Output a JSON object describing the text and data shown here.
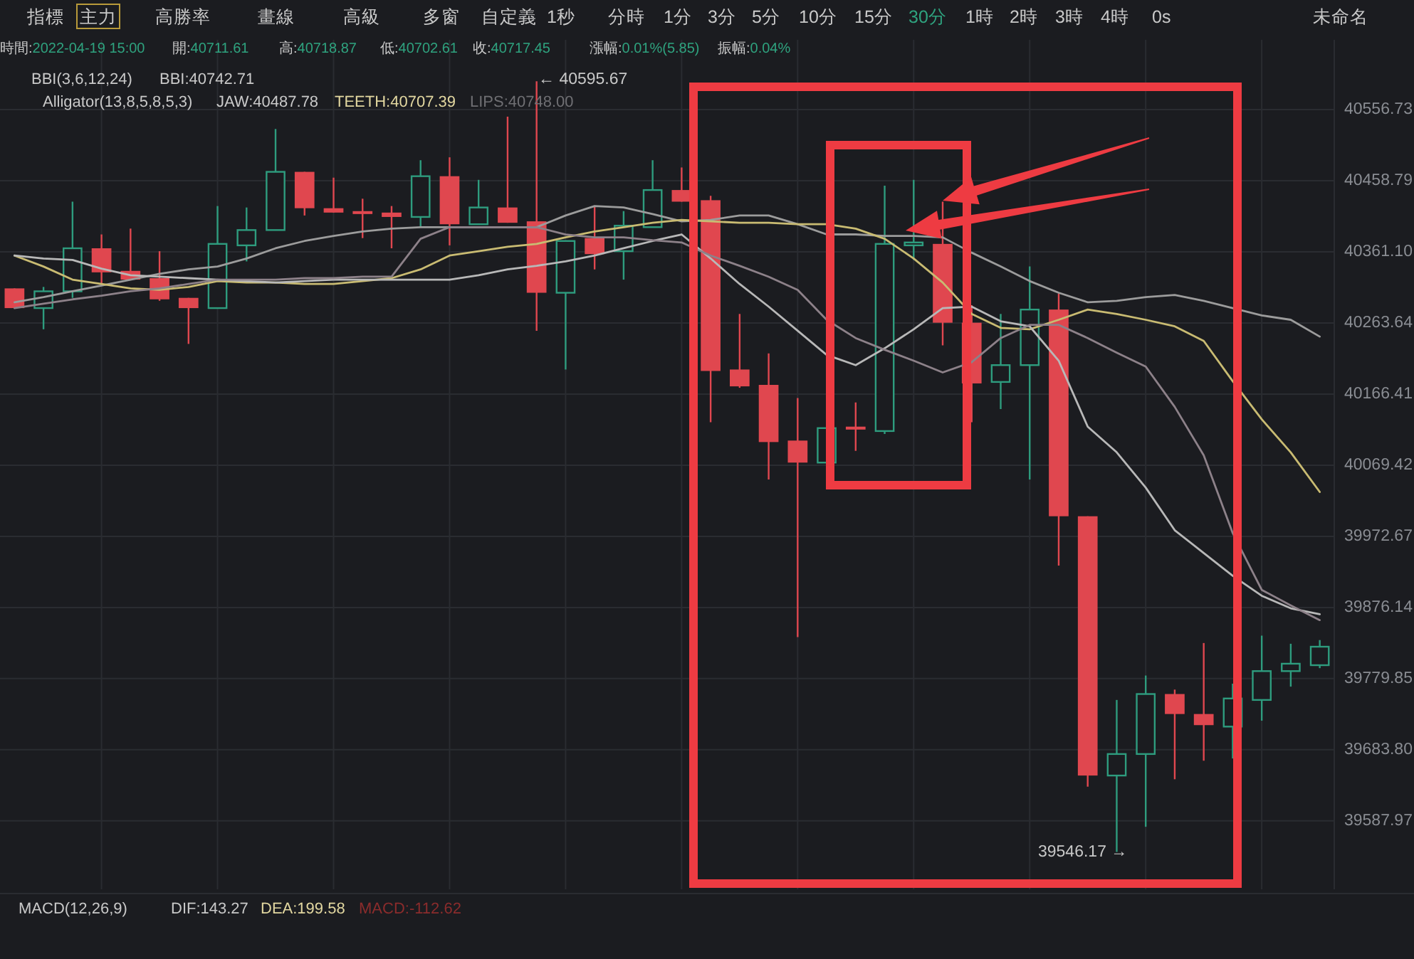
{
  "chart_data": {
    "type": "candlestick",
    "log": true,
    "grid": true,
    "tick_labels": "y",
    "categories": [
      null,
      null,
      null,
      null,
      null,
      null,
      null,
      null,
      null,
      null,
      null,
      null,
      null,
      null,
      null,
      null,
      null,
      null,
      null,
      null,
      null,
      null,
      null,
      null,
      null,
      null,
      null,
      null,
      null,
      null,
      null,
      null,
      null,
      null,
      null,
      null,
      null,
      null,
      null,
      null,
      null,
      null,
      null,
      null,
      null,
      null
    ],
    "ylim": [
      39496,
      40653
    ],
    "yticks": [
      40556.73,
      40458.79,
      {
        "value": 40361.1,
        "label": "40361.10"
      },
      40263.64,
      40166.41,
      40069.42,
      39972.67,
      39876.14,
      39779.85,
      {
        "value": 39683.8,
        "label": "39683.80"
      },
      39587.97
    ],
    "ohlc": [
      [
        40311,
        40311,
        40284,
        40284
      ],
      [
        40284,
        40313,
        40255,
        40307
      ],
      [
        40307,
        40430,
        40298,
        40366
      ],
      [
        40366,
        40385,
        40317,
        40333
      ],
      [
        40335,
        40393,
        40323,
        40323
      ],
      [
        40325,
        40362,
        40294,
        40296
      ],
      [
        40298,
        40298,
        40235,
        40284
      ],
      [
        40284,
        40424,
        40284,
        40372
      ],
      [
        40370,
        40422,
        40348,
        40391
      ],
      [
        40391,
        40530,
        40391,
        40471
      ],
      [
        40471,
        40471,
        40411,
        40421
      ],
      [
        40421,
        40463,
        40415,
        40415
      ],
      [
        40417,
        40434,
        40380,
        40413
      ],
      [
        40415,
        40424,
        40366,
        40409
      ],
      [
        40409,
        40487,
        40395,
        40465
      ],
      [
        40465,
        40491,
        40370,
        40399
      ],
      [
        40399,
        40460,
        40399,
        40422
      ],
      [
        40422,
        40547,
        40401,
        40401
      ],
      [
        40403,
        40595.67,
        40253,
        40305
      ],
      [
        40305,
        40376,
        40200,
        40376
      ],
      [
        40380,
        40424,
        40337,
        40358
      ],
      [
        40362,
        40417,
        40323,
        40397
      ],
      [
        40395,
        40487,
        40395,
        40446
      ],
      [
        40446,
        40477,
        40430,
        40430
      ],
      [
        40432,
        40438,
        40128,
        40198
      ],
      [
        40200,
        40276,
        40175,
        40177
      ],
      [
        40179,
        40222,
        40050,
        40101
      ],
      [
        40103,
        40161,
        39836,
        40073
      ],
      [
        40073,
        40120,
        40073,
        40120
      ],
      [
        40122,
        40155,
        40089,
        40118
      ],
      [
        40116,
        40452,
        40112,
        40372
      ],
      [
        40370,
        40460,
        40350,
        40374
      ],
      [
        40372,
        40430,
        40233,
        40264
      ],
      [
        40264,
        40288,
        40128,
        40181
      ],
      [
        40183,
        40276,
        40146,
        40206
      ],
      [
        40206,
        40341,
        40050,
        40282
      ],
      [
        40282,
        40304,
        39933,
        40000
      ],
      [
        40000,
        40000,
        39634,
        39649
      ],
      [
        39649,
        39751,
        39546.17,
        39678
      ],
      [
        39678,
        39784,
        39580,
        39759
      ],
      [
        39759,
        39765,
        39644,
        39732
      ],
      [
        39732,
        39828,
        39669,
        39717
      ],
      [
        39715,
        39773,
        39672,
        39753
      ],
      [
        39751,
        39838,
        39723,
        39790
      ],
      [
        39790,
        39827,
        39769,
        39800
      ],
      [
        39798,
        39832,
        39794,
        39823
      ]
    ],
    "colors": [
      "#e0474f",
      "#2e9c7e",
      "#2e9c7e",
      "#e0474f",
      "#e0474f",
      "#e0474f",
      "#e0474f",
      "#2e9c7e",
      "#2e9c7e",
      "#2e9c7e",
      "#e0474f",
      "#e0474f",
      "#e0474f",
      "#e0474f",
      "#2e9c7e",
      "#e0474f",
      "#2e9c7e",
      "#e0474f",
      "#e0474f",
      "#2e9c7e",
      "#e0474f",
      "#2e9c7e",
      "#2e9c7e",
      "#e0474f",
      "#e0474f",
      "#e0474f",
      "#e0474f",
      "#e0474f",
      "#2e9c7e",
      "#e0474f",
      "#2e9c7e",
      "#2e9c7e",
      "#e0474f",
      "#e0474f",
      "#2e9c7e",
      "#2e9c7e",
      "#e0474f",
      "#e0474f",
      "#2e9c7e",
      "#2e9c7e",
      "#e0474f",
      "#e0474f",
      "#2e9c7e",
      "#2e9c7e",
      "#2e9c7e",
      "#2e9c7e"
    ],
    "series": [
      {
        "type": "line",
        "color": "#9c9c9c",
        "values": [
          40292,
          40299,
          40307,
          40315,
          40323,
          40331,
          40337,
          40341,
          40352,
          40366,
          40376,
          40383,
          40389,
          40393,
          40395,
          40395,
          40395,
          40395,
          40395,
          40411,
          40424,
          40422,
          40413,
          40403,
          40405,
          40411,
          40411,
          40399,
          40385,
          40385,
          40383,
          40383,
          40381,
          40360,
          40341,
          40321,
          40305,
          40292,
          40294,
          40299,
          40302,
          40294,
          40284,
          40274,
          40268,
          40245
        ]
      },
      {
        "type": "line",
        "color": "#c9bb72",
        "values": [
          40356,
          40341,
          40323,
          40317,
          40311,
          40309,
          40313,
          40321,
          40319,
          40319,
          40317,
          40317,
          40321,
          40325,
          40337,
          40356,
          40362,
          40368,
          40372,
          40381,
          40389,
          40395,
          40401,
          40405,
          40403,
          40401,
          40401,
          40399,
          40399,
          40393,
          40379,
          40352,
          40319,
          40276,
          40257,
          40255,
          40268,
          40282,
          40276,
          40268,
          40259,
          40239,
          40184,
          40132,
          40087,
          40033
        ]
      },
      {
        "type": "line",
        "color": "#b8b8b8",
        "values": [
          40356,
          40352,
          40350,
          40338,
          40329,
          40327,
          40325,
          40323,
          40321,
          40319,
          40321,
          40323,
          40323,
          40323,
          40323,
          40323,
          40329,
          40337,
          40342,
          40348,
          40356,
          40366,
          40376,
          40385,
          40352,
          40317,
          40286,
          40253,
          40220,
          40206,
          40229,
          40255,
          40284,
          40286,
          40266,
          40259,
          40212,
          40122,
          40087,
          40039,
          39981,
          39950,
          39919,
          39892,
          39875,
          39867
        ]
      },
      {
        "type": "line",
        "color": "#8d8189",
        "values": [
          40284,
          40290,
          40296,
          40301,
          40307,
          40311,
          40317,
          40323,
          40323,
          40323,
          40325,
          40325,
          40327,
          40327,
          40379,
          40395,
          40395,
          40395,
          40395,
          40385,
          40381,
          40381,
          40377,
          40374,
          40356,
          40342,
          40327,
          40309,
          40268,
          40243,
          40227,
          40212,
          40196,
          40210,
          40243,
          40261,
          40261,
          40243,
          40223,
          40204,
          40149,
          40083,
          39977,
          39900,
          39879,
          39859
        ]
      }
    ],
    "annotations": [
      "指標",
      "主力",
      "高勝率",
      "畫線",
      "高級",
      "多窗",
      "自定義",
      "1秒",
      "分時",
      "1分",
      "3分",
      "5分",
      "10分",
      "15分",
      "30分",
      "1時",
      "2時",
      "3時",
      "4時",
      "0s",
      "未命名",
      "時間:2022-04-19 15:00",
      "開:40711.61",
      "高:40718.87",
      "低:40702.61",
      "收:40717.45",
      "漲幅:0.01%(5.85)",
      "振幅:0.04%",
      "BBI(3,6,12,24)",
      "BBI:40742.71",
      "Alligator(13,8,5,8,5,3)",
      "JAW:40487.78",
      "TEETH:40707.39",
      "LIPS:40748.00",
      "MACD(12,26,9)",
      "DIF:143.27",
      "DEA:199.58",
      "MACD:-112.62",
      "← 40595.67",
      "39546.17 →"
    ]
  }
}
